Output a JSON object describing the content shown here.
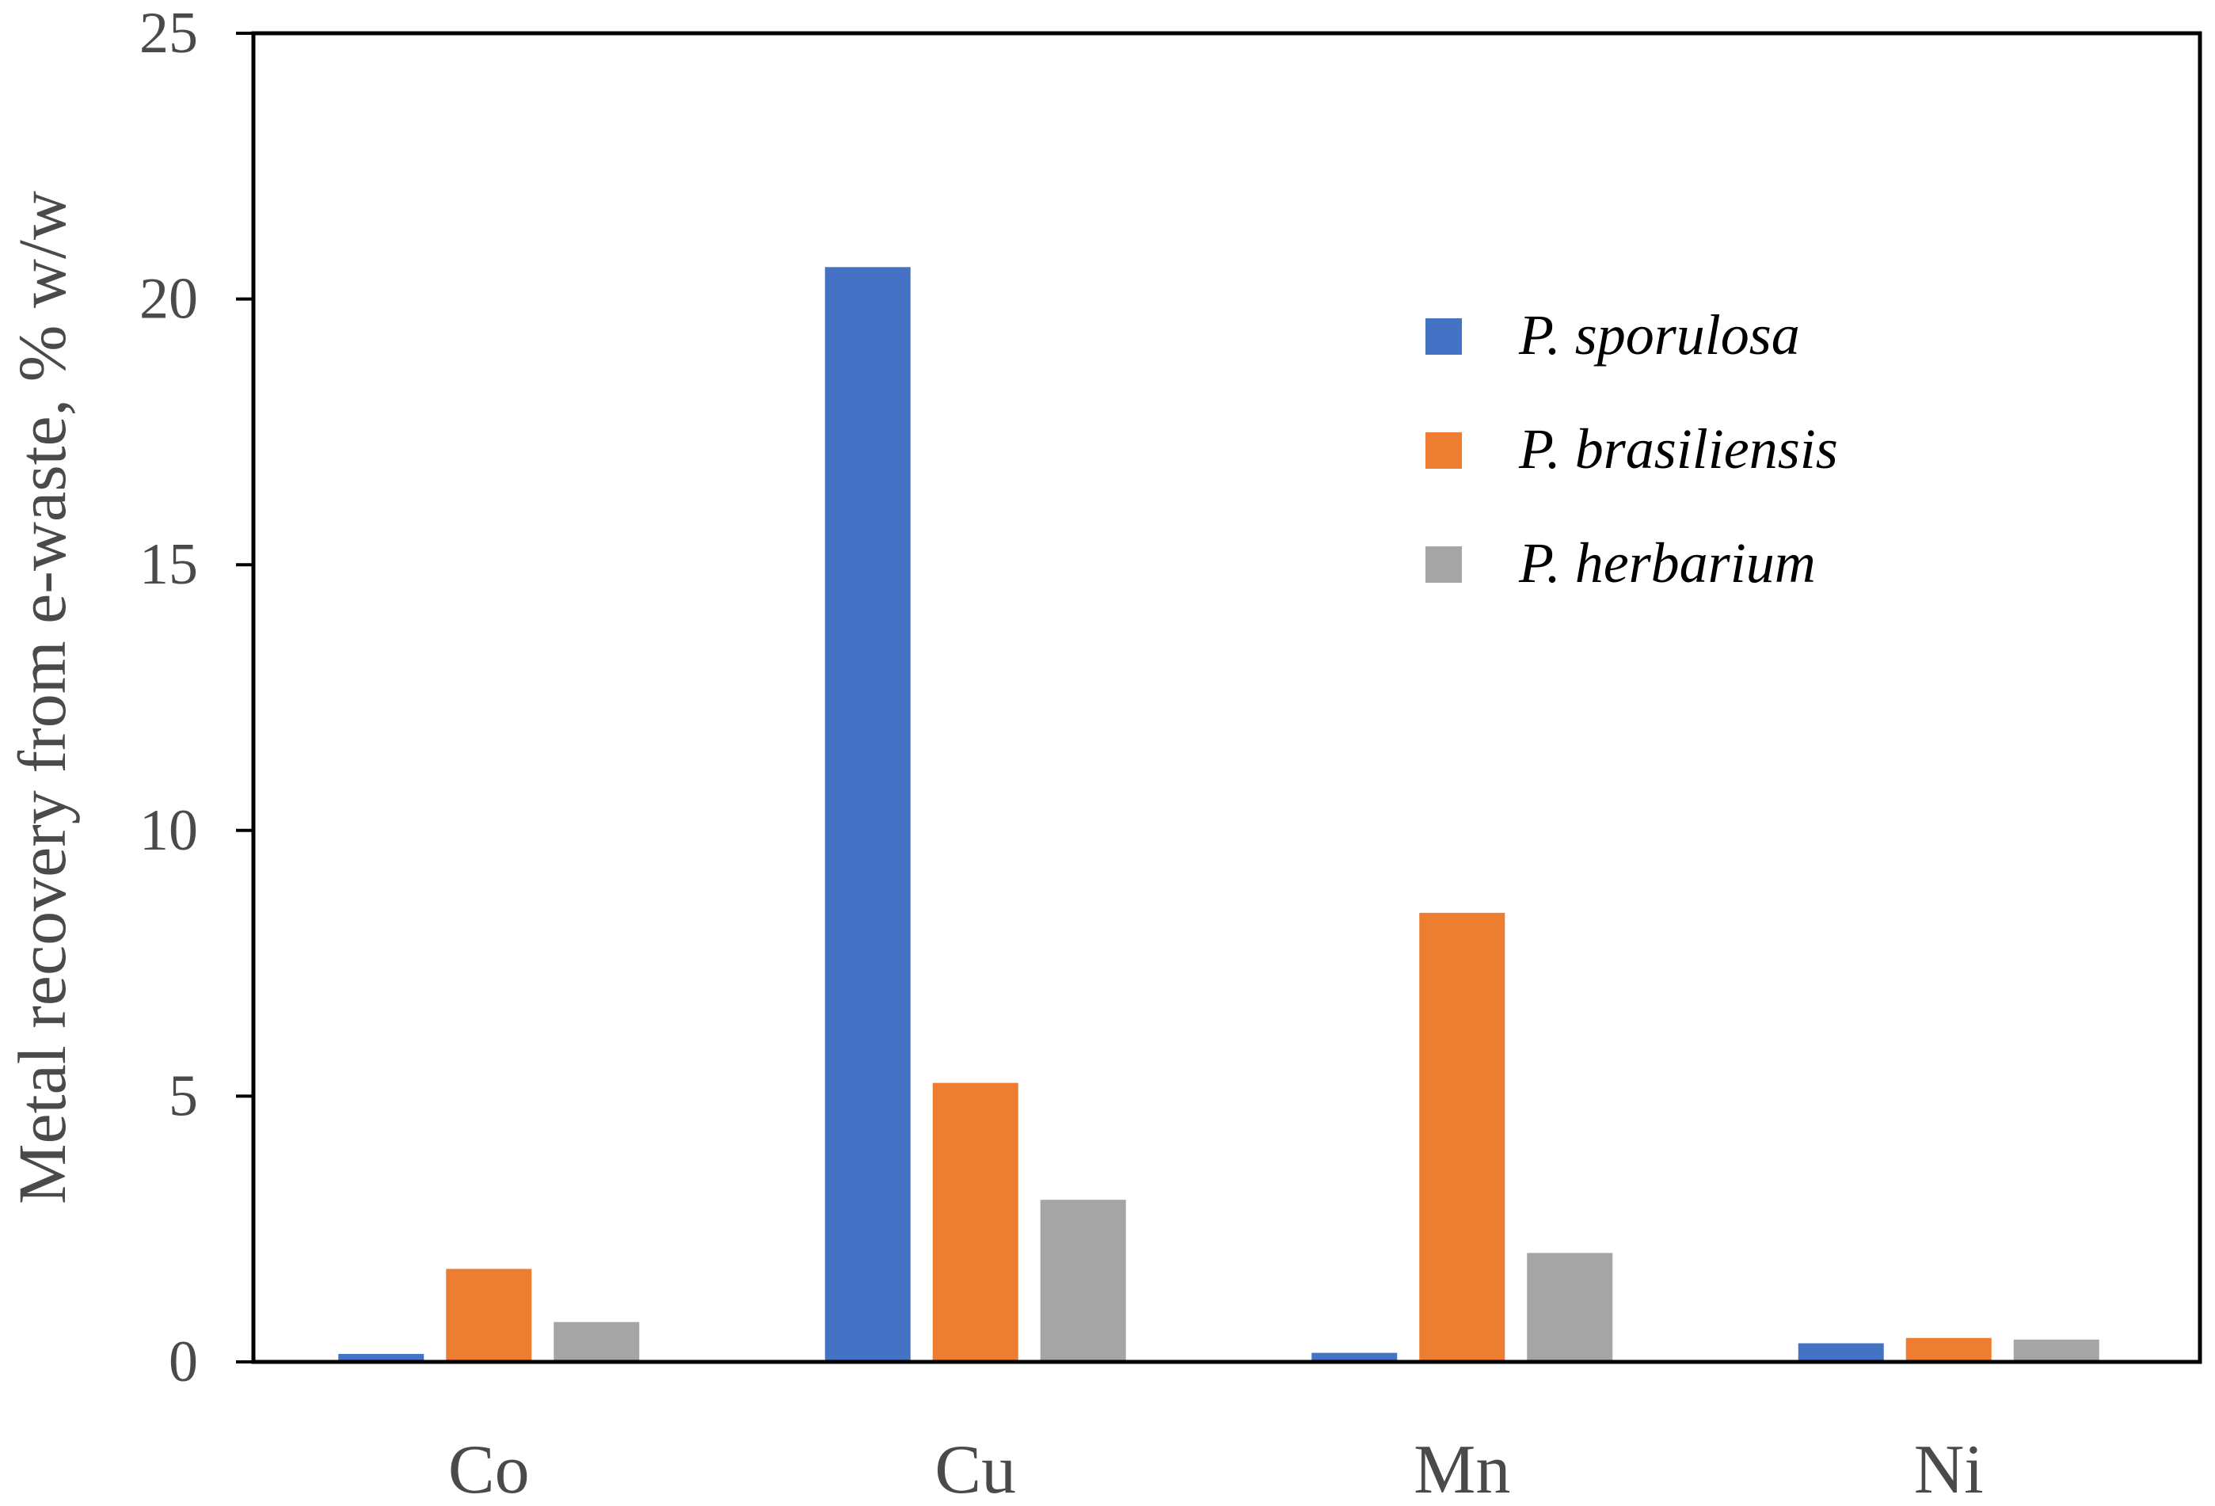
{
  "chart_data": {
    "type": "bar",
    "title": "",
    "xlabel": "",
    "ylabel": "Metal recovery from e-waste, % w/w",
    "ylim": [
      0,
      25
    ],
    "yticks": [
      0,
      5,
      10,
      15,
      20,
      25
    ],
    "categories": [
      "Co",
      "Cu",
      "Mn",
      "Ni"
    ],
    "series": [
      {
        "name": "P. sporulosa",
        "color": "#4472C4",
        "values": [
          0.15,
          20.6,
          0.17,
          0.35
        ]
      },
      {
        "name": "P. brasiliensis",
        "color": "#ED7D31",
        "values": [
          1.75,
          5.25,
          8.45,
          0.45
        ]
      },
      {
        "name": "P. herbarium",
        "color": "#A5A5A5",
        "values": [
          0.75,
          3.05,
          2.05,
          0.42
        ]
      }
    ],
    "legend_position": "top-right",
    "grid": false
  }
}
